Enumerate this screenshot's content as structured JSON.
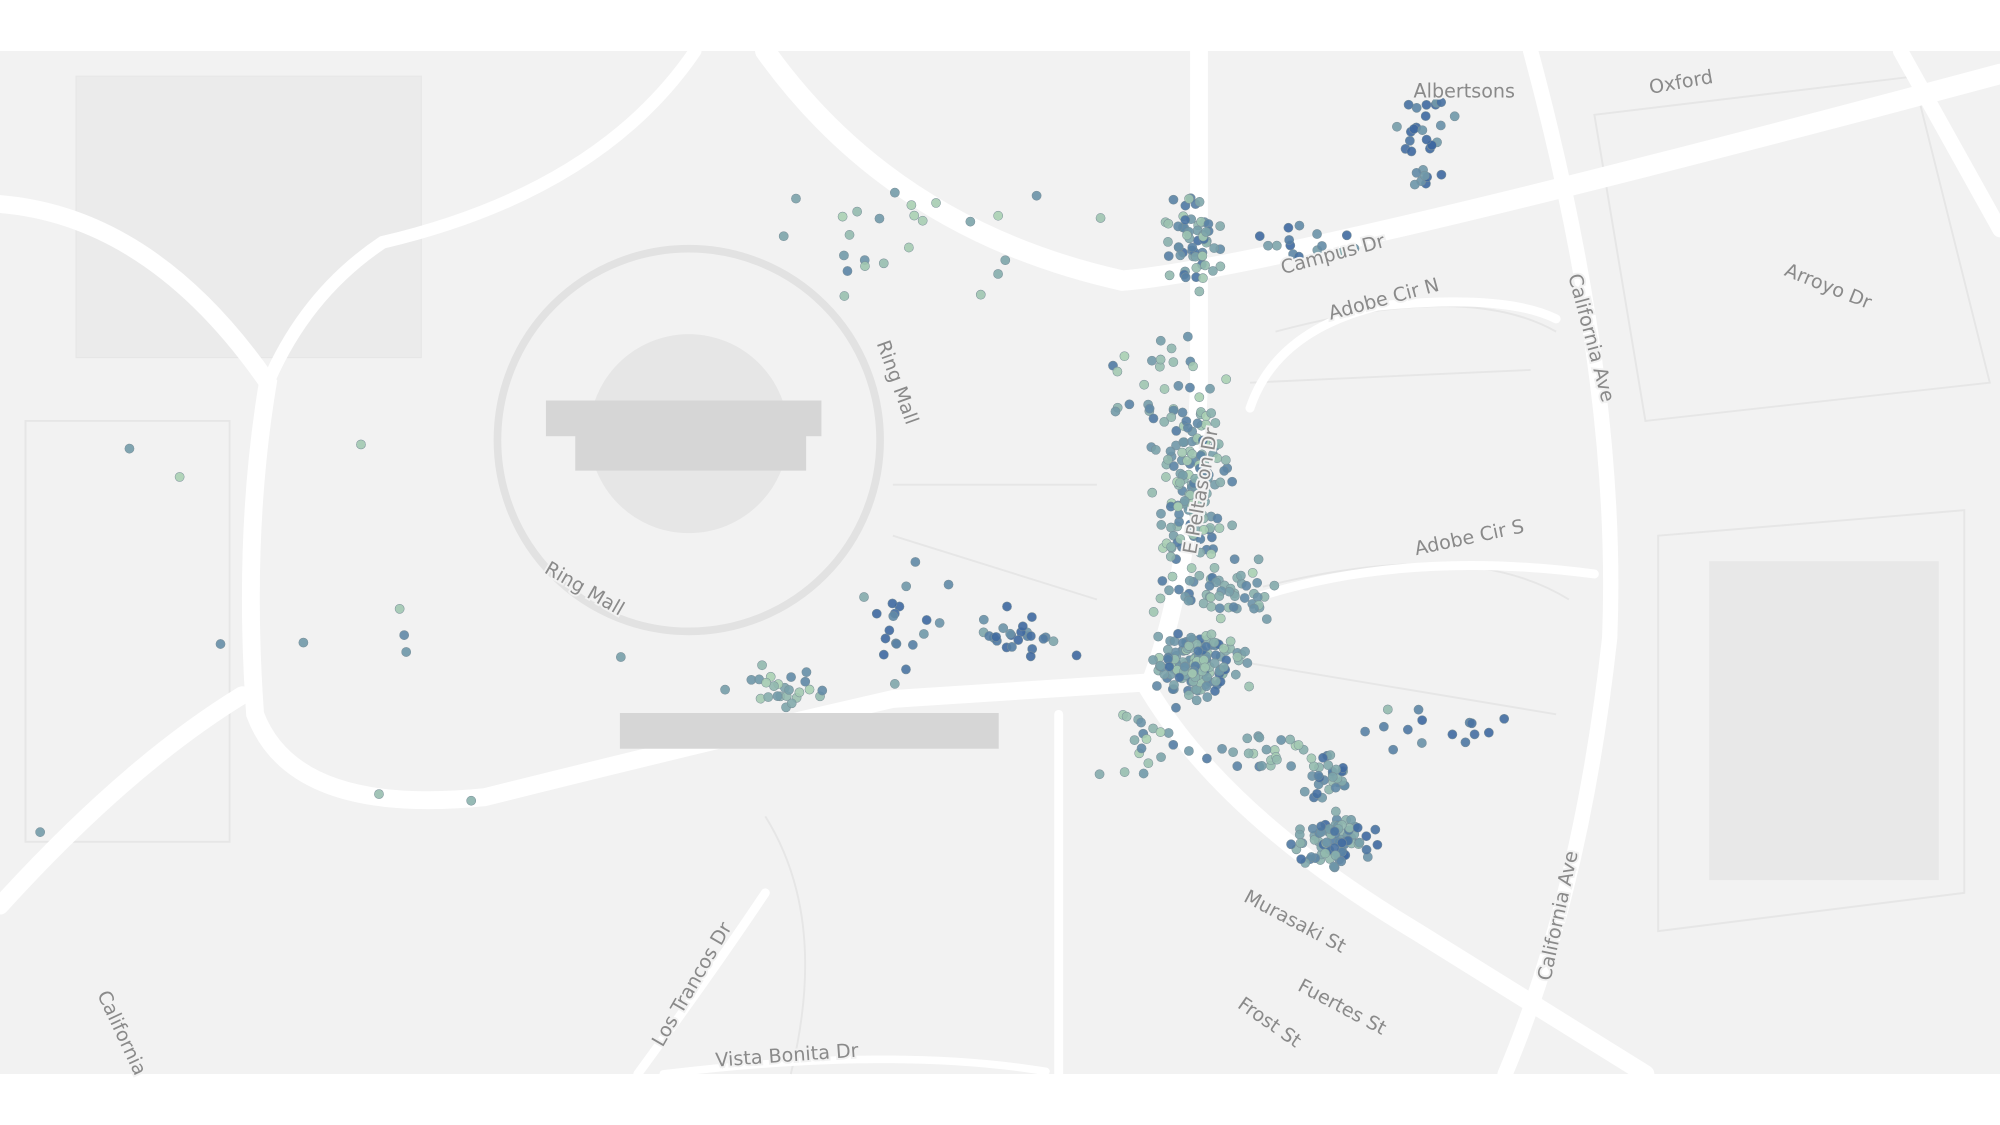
{
  "map": {
    "labels": [
      "Albertsons",
      "Oxford",
      "Campus Dr",
      "Adobe Cir N",
      "Arroyo Dr",
      "California Ave",
      "Ring Mall",
      "E Peltason Dr",
      "Adobe Cir S",
      "Ring Mall",
      "Murasaki St",
      "Fuertes St",
      "Frost St",
      "California Ave",
      "Los Trancos Dr",
      "Vista Bonita Dr",
      "California"
    ]
  }
}
